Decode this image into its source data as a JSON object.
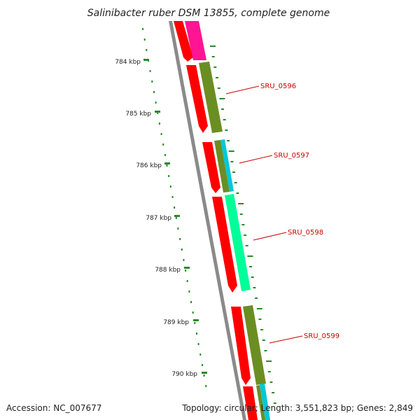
{
  "title": "Salinibacter ruber DSM 13855, complete genome",
  "footer": {
    "accession": "Accession: NC_007677",
    "topology": "Topology: circular; Length: 3,551,823 bp; Genes: 2,849"
  },
  "kbp_labels": [
    "784 kbp",
    "785 kbp",
    "786 kbp",
    "787 kbp",
    "788 kbp",
    "789 kbp",
    "790 kbp"
  ],
  "gene_labels": [
    "SRU_0596",
    "SRU_0597",
    "SRU_0598",
    "SRU_0599"
  ],
  "colors": {
    "backbone": "#8a8a8a",
    "cds": "#ff0000",
    "olive": "#6b8e23",
    "magenta": "#ff1493",
    "cyan": "#00c8d8",
    "spring": "#00ff99",
    "ticks": "#2a8a2a",
    "label": "#cc0000"
  }
}
